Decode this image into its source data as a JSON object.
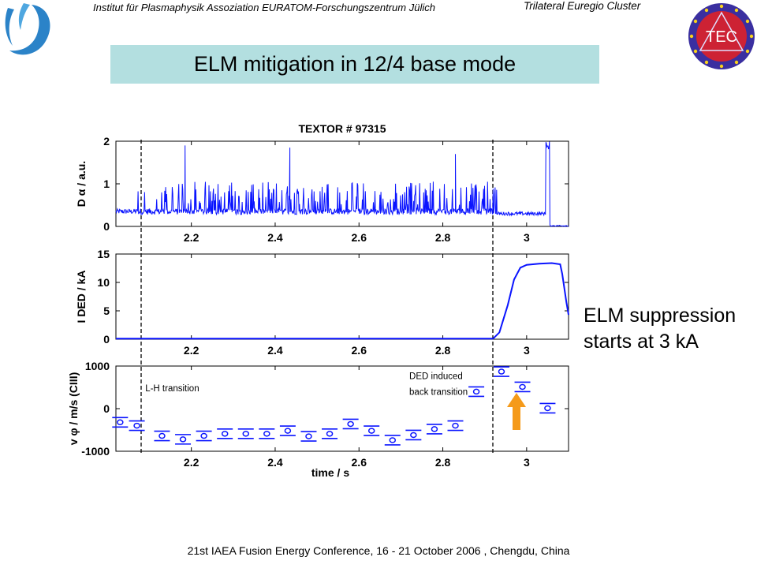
{
  "header": {
    "institute": "Institut für Plasmaphysik Assoziation EURATOM-Forschungszentrum Jülich",
    "cluster": "Trilateral Euregio Cluster",
    "tec_logo_text": "TEC"
  },
  "title": "ELM mitigation in 12/4 base mode",
  "side_note": "ELM suppression starts at 3 kA",
  "footer": "21st IAEA Fusion Energy Conference, 16 - 21 October 2006 , Chengdu, China",
  "colors": {
    "series": "#0a14ff",
    "title_bg": "#b3dfe0",
    "arrow": "#f59a1a"
  },
  "chart_data": [
    {
      "type": "line",
      "title": "TEXTOR # 97315",
      "ylabel": "D α / a.u.",
      "xlim": [
        2.02,
        3.1
      ],
      "ylim": [
        0,
        2
      ],
      "xticks": [
        "2.2",
        "2.4",
        "2.6",
        "2.8",
        "3"
      ],
      "yticks": [
        "0",
        "1",
        "2"
      ],
      "series": [
        {
          "baseline": 0.35,
          "elm_region": [
            2.07,
            2.93
          ],
          "elm_typical_peak": 0.9,
          "spikes": [
            {
              "x": 2.185,
              "y": 1.9
            },
            {
              "x": 2.435,
              "y": 1.85
            },
            {
              "x": 2.83,
              "y": 1.7
            }
          ],
          "post_level": 0.3,
          "burst": {
            "x": [
              3.045,
              3.055
            ],
            "y": 2.0
          },
          "end_level": 0.0
        }
      ]
    },
    {
      "type": "line",
      "ylabel": "I DED / kA",
      "xlim": [
        2.02,
        3.1
      ],
      "ylim": [
        0,
        15
      ],
      "xticks": [
        "2.2",
        "2.4",
        "2.6",
        "2.8",
        "3"
      ],
      "yticks": [
        "0",
        "5",
        "10",
        "15"
      ],
      "series": [
        {
          "points": [
            [
              2.02,
              0.1
            ],
            [
              2.92,
              0.1
            ],
            [
              2.935,
              1.2
            ],
            [
              2.955,
              6.0
            ],
            [
              2.97,
              10.5
            ],
            [
              2.985,
              12.6
            ],
            [
              3.0,
              13.1
            ],
            [
              3.03,
              13.3
            ],
            [
              3.06,
              13.4
            ],
            [
              3.08,
              13.2
            ],
            [
              3.085,
              11.5
            ],
            [
              3.095,
              6.5
            ],
            [
              3.1,
              4.3
            ]
          ]
        }
      ]
    },
    {
      "type": "scatter",
      "xlabel": "time / s",
      "ylabel": "v φ / m/s (CIII)",
      "xlim": [
        2.02,
        3.1
      ],
      "ylim": [
        -1000,
        1000
      ],
      "xticks": [
        "2.2",
        "2.4",
        "2.6",
        "2.8",
        "3"
      ],
      "yticks": [
        "-1000",
        "0",
        "1000"
      ],
      "series": [
        {
          "x": [
            2.03,
            2.07,
            2.13,
            2.18,
            2.23,
            2.28,
            2.33,
            2.38,
            2.43,
            2.48,
            2.53,
            2.58,
            2.63,
            2.68,
            2.73,
            2.78,
            2.83,
            2.88,
            2.94,
            2.99,
            3.05
          ],
          "y": [
            -320,
            -400,
            -640,
            -720,
            -640,
            -590,
            -590,
            -590,
            -520,
            -650,
            -590,
            -360,
            -520,
            -740,
            -620,
            -480,
            -400,
            400,
            870,
            510,
            10
          ]
        }
      ],
      "annotations": [
        {
          "text": "L-H transition",
          "x": 2.09,
          "y": 410
        },
        {
          "text": "DED induced",
          "x": 2.72,
          "y": 690
        },
        {
          "text": "back transition",
          "x": 2.72,
          "y": 320
        }
      ]
    }
  ]
}
